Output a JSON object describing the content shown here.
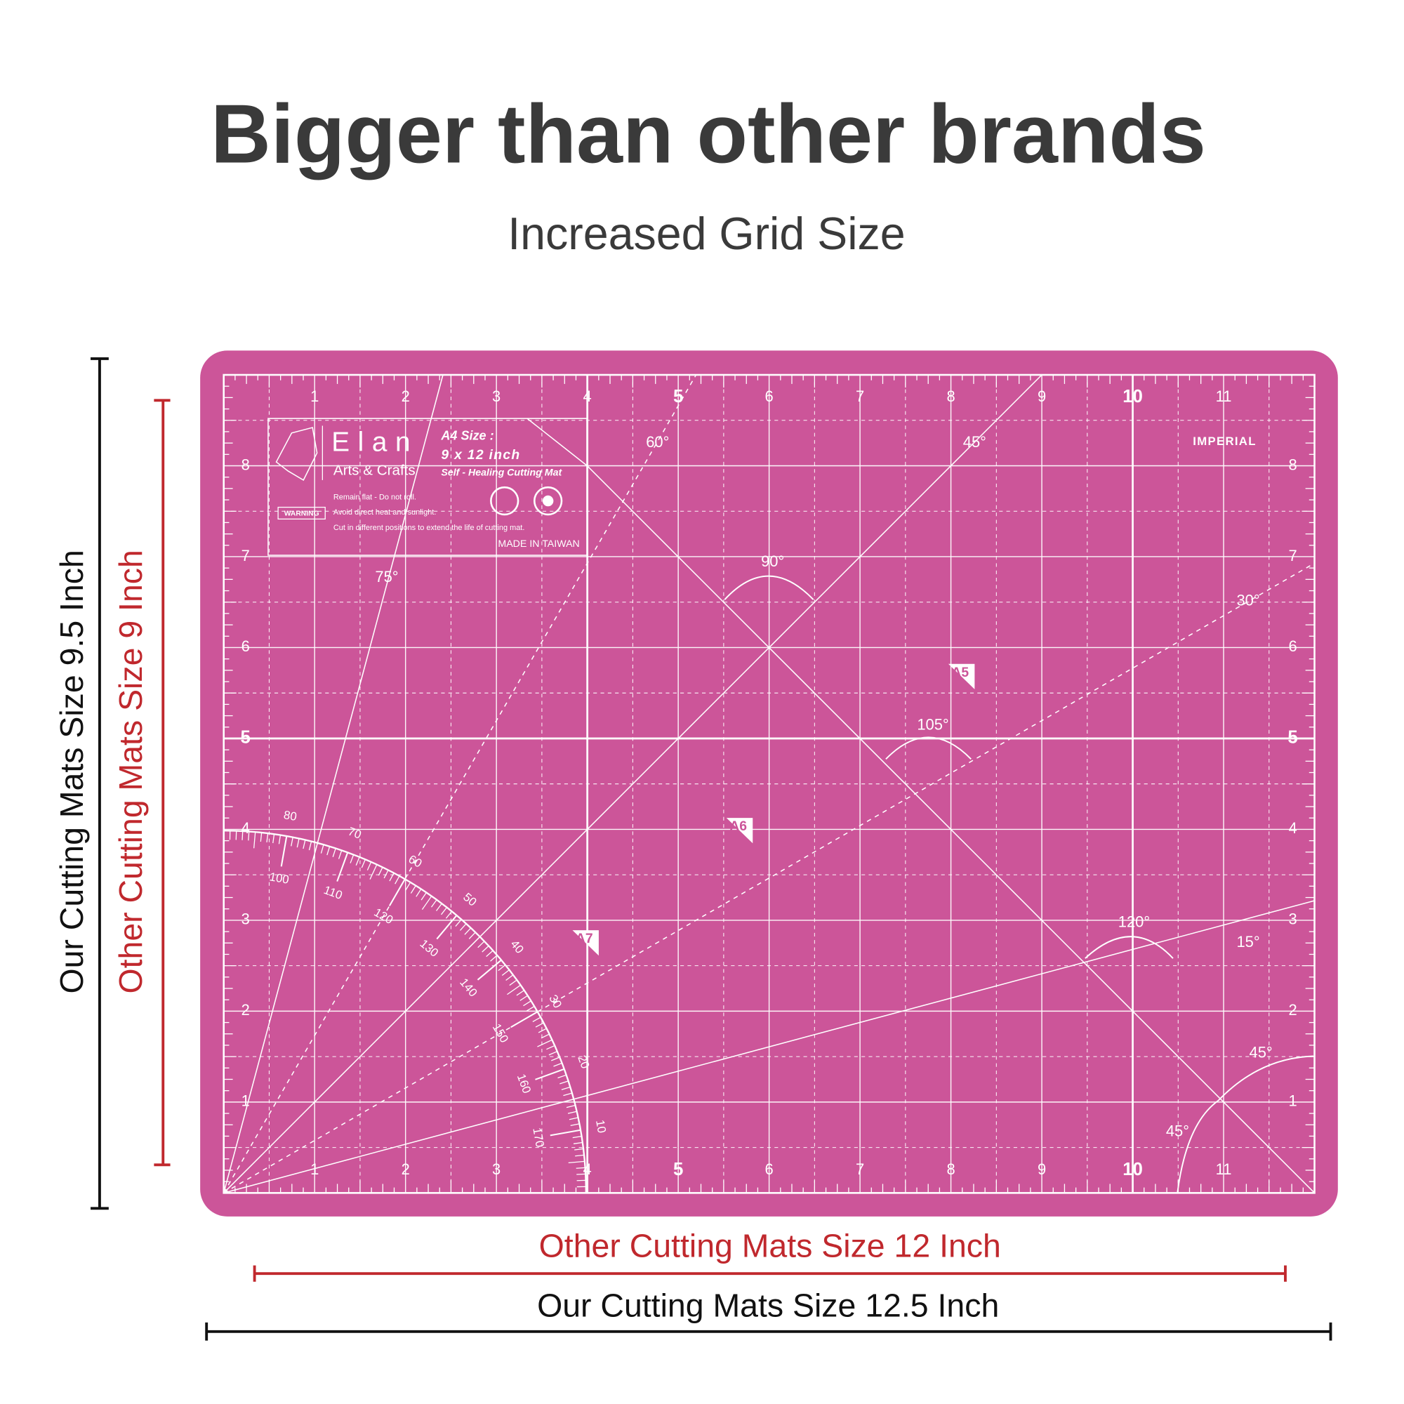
{
  "header": {
    "title": "Bigger than other brands",
    "subtitle": "Increased Grid Size"
  },
  "dimensions": {
    "our_height": "Our Cutting Mats Size 9.5 Inch",
    "other_height": "Other Cutting Mats Size 9 Inch",
    "other_width": "Other Cutting Mats Size 12 Inch",
    "our_width": "Our Cutting Mats Size 12.5 Inch"
  },
  "mat": {
    "brand": "Elan",
    "brand_sub": "Arts & Crafts",
    "size_title": "A4 Size :",
    "size": "9 x 12 inch",
    "product": "Self - Healing Cutting Mat",
    "warning": "WARNING",
    "notes": [
      "Remain flat - Do not roll.",
      "Avoid direct heat and sunlight.",
      "Cut in different positions to extend the life of cutting mat."
    ],
    "origin": "MADE IN TAIWAN",
    "system": "IMPERIAL",
    "x_labels": [
      "1",
      "2",
      "3",
      "4",
      "5",
      "6",
      "7",
      "8",
      "9",
      "10",
      "11"
    ],
    "y_labels": [
      "1",
      "2",
      "3",
      "4",
      "5",
      "6",
      "7",
      "8"
    ],
    "angle_labels": [
      "60°",
      "45°",
      "75°",
      "90°",
      "30°",
      "105°",
      "120°",
      "15°",
      "45°",
      "45°"
    ],
    "paper_sizes": [
      "A5",
      "A6",
      "A7"
    ],
    "protractor_outer": [
      "80",
      "70",
      "60",
      "50",
      "40",
      "30",
      "20",
      "10"
    ],
    "protractor_inner": [
      "100",
      "110",
      "120",
      "130",
      "140",
      "150",
      "160",
      "170"
    ]
  }
}
